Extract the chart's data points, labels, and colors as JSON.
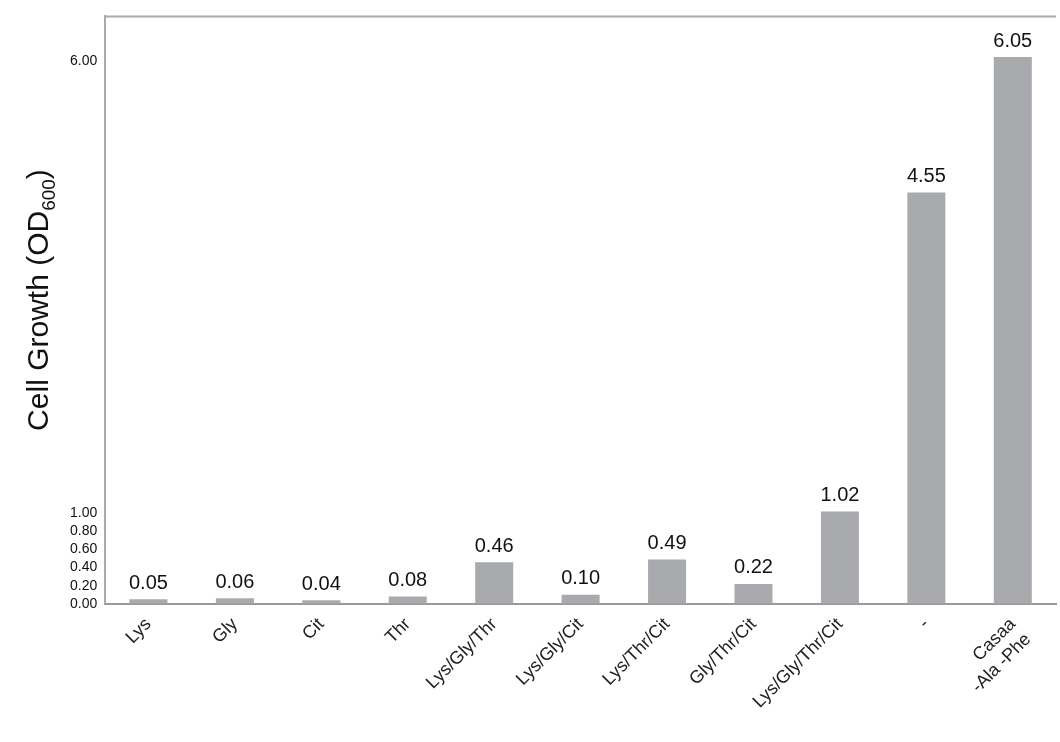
{
  "chart_data": {
    "type": "bar",
    "ylabel": "Cell Growth (OD$_{600}$)",
    "categories": [
      "Lys",
      "Gly",
      "Cit",
      "Thr",
      "Lys/Gly/Thr",
      "Lys/Gly/Cit",
      "Lys/Thr/Cit",
      "Gly/Thr/Cit",
      "Lys/Gly/Thr/Cit",
      "-",
      "Casaa\n-Ala -Phe"
    ],
    "values": [
      0.05,
      0.06,
      0.04,
      0.08,
      0.46,
      0.1,
      0.49,
      0.22,
      1.02,
      4.55,
      6.05
    ],
    "value_labels": [
      "0.05",
      "0.06",
      "0.04",
      "0.08",
      "0.46",
      "0.10",
      "0.49",
      "0.22",
      "1.02",
      "4.55",
      "6.05"
    ],
    "color": "#a9aaad",
    "ylim": [
      0,
      6.5
    ],
    "yticks": [
      {
        "value": 0,
        "label": "0.00"
      },
      {
        "value": 0.2,
        "label": "0.20"
      },
      {
        "value": 0.4,
        "label": "0.40"
      },
      {
        "value": 0.6,
        "label": "0.60"
      },
      {
        "value": 0.8,
        "label": "0.80"
      },
      {
        "value": 1,
        "label": "1.00"
      },
      {
        "value": 6,
        "label": "6.00"
      }
    ],
    "grid": false
  }
}
